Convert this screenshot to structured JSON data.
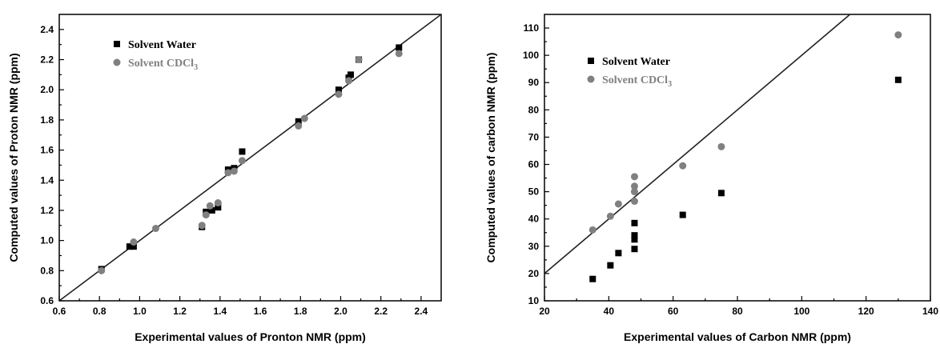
{
  "chart_data": [
    {
      "type": "scatter",
      "title": "",
      "xlabel": "Experimental values of Pronton NMR (ppm)",
      "ylabel": "Computed values of Proton NMR (ppm)",
      "xlim": [
        0.6,
        2.5
      ],
      "ylim": [
        0.6,
        2.5
      ],
      "xticks": [
        "0.6",
        "0.8",
        "1.0",
        "1.2",
        "1.4",
        "1.6",
        "1.8",
        "2.0",
        "2.2",
        "2.4"
      ],
      "yticks": [
        "0.6",
        "0.8",
        "1.0",
        "1.2",
        "1.4",
        "1.6",
        "1.8",
        "2.0",
        "2.2",
        "2.4"
      ],
      "grid": false,
      "legend_position": "top-left",
      "reference_line": "y = x",
      "series": [
        {
          "name": "Solvent Water",
          "marker": "square",
          "color": "#000000",
          "points": [
            [
              0.81,
              0.81
            ],
            [
              0.95,
              0.96
            ],
            [
              0.97,
              0.96
            ],
            [
              1.31,
              1.09
            ],
            [
              1.33,
              1.19
            ],
            [
              1.36,
              1.2
            ],
            [
              1.39,
              1.22
            ],
            [
              1.44,
              1.47
            ],
            [
              1.47,
              1.48
            ],
            [
              1.51,
              1.59
            ],
            [
              1.79,
              1.79
            ],
            [
              1.99,
              2.0
            ],
            [
              2.04,
              2.08
            ],
            [
              2.05,
              2.1
            ],
            [
              2.09,
              2.2
            ],
            [
              2.29,
              2.28
            ]
          ]
        },
        {
          "name": "Solvent CDCl",
          "name_sub": "3",
          "marker": "circle",
          "color": "#808080",
          "points": [
            [
              0.81,
              0.8
            ],
            [
              0.97,
              0.99
            ],
            [
              1.08,
              1.08
            ],
            [
              1.31,
              1.1
            ],
            [
              1.33,
              1.17
            ],
            [
              1.35,
              1.23
            ],
            [
              1.39,
              1.25
            ],
            [
              1.44,
              1.45
            ],
            [
              1.47,
              1.46
            ],
            [
              1.51,
              1.53
            ],
            [
              1.79,
              1.76
            ],
            [
              1.82,
              1.81
            ],
            [
              1.99,
              1.97
            ],
            [
              2.04,
              2.06
            ],
            [
              2.09,
              2.2
            ],
            [
              2.29,
              2.24
            ]
          ]
        }
      ]
    },
    {
      "type": "scatter",
      "title": "",
      "xlabel": "Experimental values of Carbon NMR (ppm)",
      "ylabel": "Computed values of carbon NMR (ppm)",
      "xlim": [
        20,
        140
      ],
      "ylim": [
        10,
        115
      ],
      "xticks": [
        "20",
        "40",
        "60",
        "80",
        "100",
        "120",
        "140"
      ],
      "yticks": [
        "10",
        "20",
        "30",
        "40",
        "50",
        "60",
        "70",
        "80",
        "90",
        "100",
        "110"
      ],
      "grid": false,
      "legend_position": "top-left",
      "reference_line": "y = x",
      "series": [
        {
          "name": "Solvent Water",
          "marker": "square",
          "color": "#000000",
          "points": [
            [
              35,
              18
            ],
            [
              40.5,
              23
            ],
            [
              43,
              27.5
            ],
            [
              48,
              29
            ],
            [
              48,
              32.5
            ],
            [
              48,
              34
            ],
            [
              48,
              38.5
            ],
            [
              63,
              41.5
            ],
            [
              75,
              49.5
            ],
            [
              130,
              91
            ]
          ]
        },
        {
          "name": "Solvent CDCl",
          "name_sub": "3",
          "marker": "circle",
          "color": "#808080",
          "points": [
            [
              35,
              36
            ],
            [
              40.5,
              41
            ],
            [
              43,
              45.5
            ],
            [
              48,
              46.5
            ],
            [
              48,
              50
            ],
            [
              48,
              52
            ],
            [
              48,
              55.5
            ],
            [
              63,
              59.5
            ],
            [
              75,
              66.5
            ],
            [
              130,
              107.5
            ]
          ]
        }
      ]
    }
  ]
}
